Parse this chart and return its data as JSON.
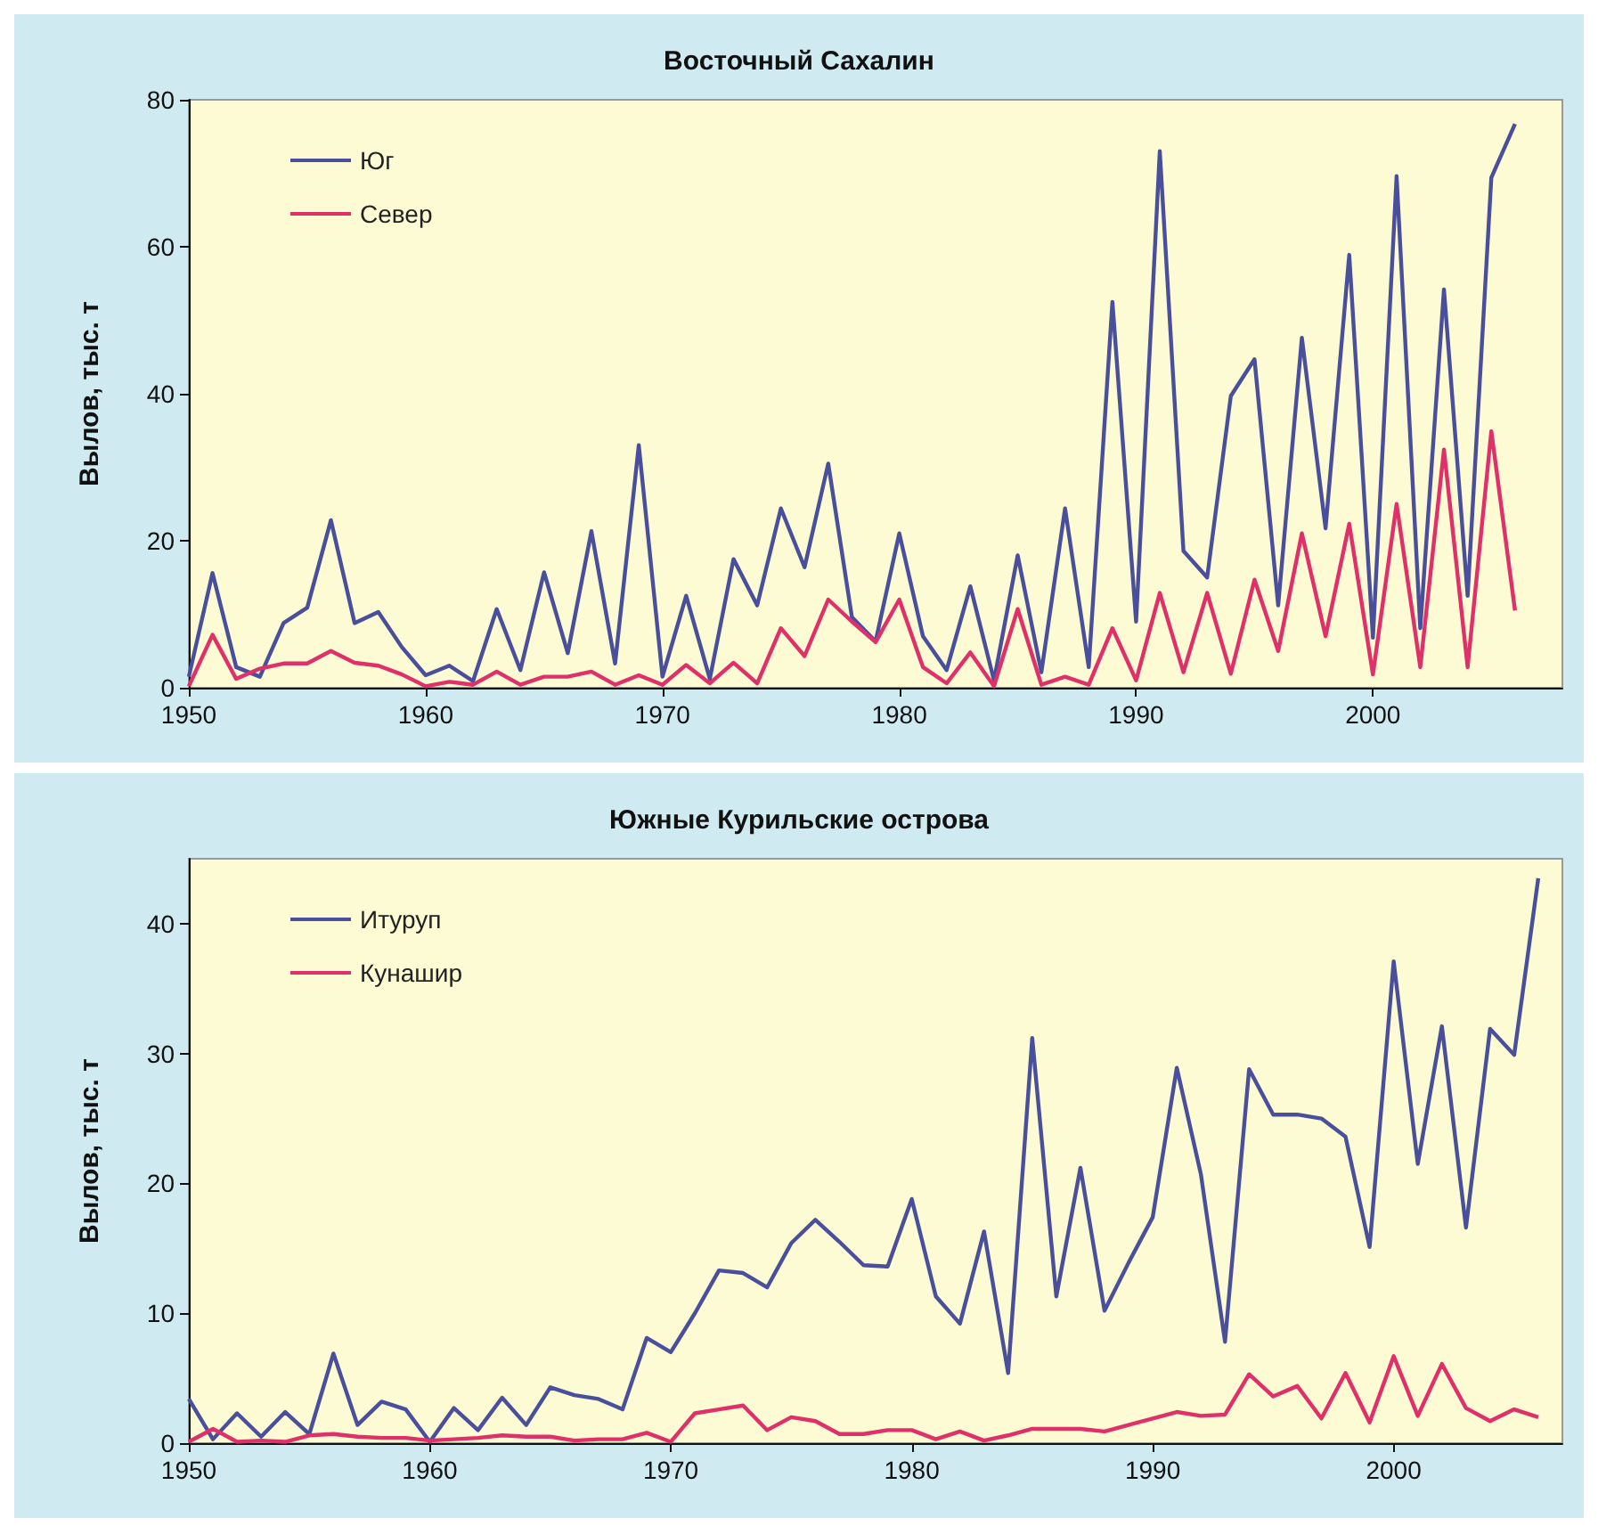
{
  "chart_data": [
    {
      "type": "line",
      "title": "Восточный Сахалин",
      "ylabel": "Вылов, тыс. т",
      "x": [
        1950,
        1951,
        1952,
        1953,
        1954,
        1955,
        1956,
        1957,
        1958,
        1959,
        1960,
        1961,
        1962,
        1963,
        1964,
        1965,
        1966,
        1967,
        1968,
        1969,
        1970,
        1971,
        1972,
        1973,
        1974,
        1975,
        1976,
        1977,
        1978,
        1979,
        1980,
        1981,
        1982,
        1983,
        1984,
        1985,
        1986,
        1987,
        1988,
        1989,
        1990,
        1991,
        1992,
        1993,
        1994,
        1995,
        1996,
        1997,
        1998,
        1999,
        2000,
        2001,
        2002,
        2003,
        2004,
        2005,
        2006
      ],
      "series": [
        {
          "name": "Юг",
          "color": "#4a4f9c",
          "values": [
            1.5,
            15.6,
            2.8,
            1.5,
            8.8,
            10.9,
            22.8,
            8.8,
            10.3,
            5.5,
            1.7,
            3,
            0.9,
            10.7,
            2.4,
            15.7,
            4.7,
            21.3,
            3.3,
            33,
            1.5,
            12.5,
            1.2,
            17.5,
            11.2,
            24.4,
            16.4,
            30.5,
            9.6,
            6.3,
            21,
            7,
            2.4,
            13.8,
            1,
            18,
            2.1,
            24.4,
            2.8,
            52.5,
            9,
            73,
            18.6,
            15,
            39.7,
            44.7,
            11.2,
            47.6,
            21.7,
            58.9,
            6.8,
            69.6,
            8.1,
            54.2,
            12.5,
            69.4,
            76.7
          ]
        },
        {
          "name": "Север",
          "color": "#e0306a",
          "values": [
            0.2,
            7.2,
            1.2,
            2.6,
            3.3,
            3.3,
            5,
            3.4,
            3,
            1.8,
            0.2,
            0.8,
            0.4,
            2.2,
            0.4,
            1.5,
            1.5,
            2.2,
            0.4,
            1.7,
            0.4,
            3.1,
            0.6,
            3.4,
            0.6,
            8.1,
            4.3,
            12,
            9,
            6.2,
            12,
            2.8,
            0.6,
            4.8,
            0.2,
            10.7,
            0.4,
            1.5,
            0.4,
            8.1,
            1,
            12.9,
            2.1,
            12.9,
            1.9,
            14.7,
            5,
            21,
            7,
            22.3,
            1.8,
            25,
            2.8,
            32.4,
            2.8,
            34.9,
            10.5
          ]
        }
      ],
      "xlim": [
        1950,
        2008
      ],
      "xticks": [
        1950,
        1960,
        1970,
        1980,
        1990,
        2000
      ],
      "ylim": [
        0,
        80
      ],
      "yticks": [
        0,
        20,
        40,
        60,
        80
      ],
      "legend": "top left",
      "grid": false
    },
    {
      "type": "line",
      "title": "Южные Курильские острова",
      "ylabel": "Вылов, тыс. т",
      "x": [
        1950,
        1951,
        1952,
        1953,
        1954,
        1955,
        1956,
        1957,
        1958,
        1959,
        1960,
        1961,
        1962,
        1963,
        1964,
        1965,
        1966,
        1967,
        1968,
        1969,
        1970,
        1971,
        1972,
        1973,
        1974,
        1975,
        1976,
        1977,
        1978,
        1979,
        1980,
        1981,
        1982,
        1983,
        1984,
        1985,
        1986,
        1987,
        1988,
        1989,
        1990,
        1991,
        1992,
        1993,
        1994,
        1995,
        1996,
        1997,
        1998,
        1999,
        2000,
        2001,
        2002,
        2003,
        2004,
        2005,
        2006
      ],
      "series": [
        {
          "name": "Итуруп",
          "color": "#4a4f9c",
          "values": [
            3.4,
            0.3,
            2.3,
            0.5,
            2.4,
            0.7,
            6.9,
            1.4,
            3.2,
            2.6,
            0.1,
            2.7,
            1,
            3.5,
            1.4,
            4.3,
            3.7,
            3.4,
            2.6,
            8.1,
            7,
            10,
            13.3,
            13.1,
            12,
            15.4,
            17.2,
            15.5,
            13.7,
            13.6,
            18.8,
            11.3,
            9.2,
            16.3,
            5.4,
            31.2,
            11.3,
            21.2,
            10.2,
            13.9,
            17.4,
            28.9,
            20.7,
            7.8,
            28.8,
            25.3,
            25.3,
            25,
            23.6,
            15.1,
            37.1,
            21.5,
            32.1,
            16.6,
            31.9,
            29.9,
            43.5
          ]
        },
        {
          "name": "Кунашир",
          "color": "#e0306a",
          "values": [
            0.1,
            1.1,
            0.1,
            0.2,
            0.1,
            0.6,
            0.7,
            0.5,
            0.4,
            0.4,
            0.2,
            0.3,
            0.4,
            0.6,
            0.5,
            0.5,
            0.2,
            0.3,
            0.3,
            0.8,
            0.1,
            2.3,
            2.6,
            2.9,
            1,
            2,
            1.7,
            0.7,
            0.7,
            1,
            1,
            0.3,
            0.9,
            0.2,
            0.6,
            1.1,
            1.1,
            1.1,
            0.9,
            1.4,
            1.9,
            2.4,
            2.1,
            2.2,
            5.3,
            3.6,
            4.4,
            1.9,
            5.4,
            1.6,
            6.7,
            2.1,
            6.1,
            2.7,
            1.7,
            2.6,
            2
          ]
        }
      ],
      "xlim": [
        1950,
        2007
      ],
      "xticks": [
        1950,
        1960,
        1970,
        1980,
        1990,
        2000
      ],
      "ylim": [
        0,
        45
      ],
      "yticks": [
        0,
        10,
        20,
        30,
        40
      ],
      "legend": "top left",
      "grid": false
    }
  ]
}
